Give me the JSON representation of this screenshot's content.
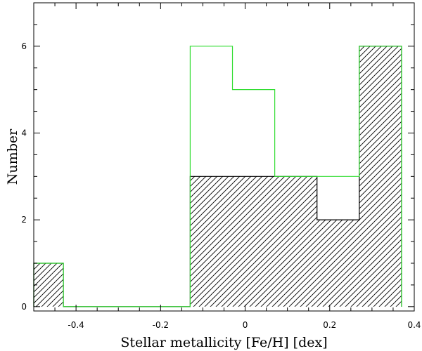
{
  "chart_data": {
    "type": "histogram",
    "xlabel": "Stellar metallicity [Fe/H] [dex]",
    "ylabel": "Number",
    "xlim": [
      -0.5,
      0.4
    ],
    "ylim": [
      -0.1,
      7.0
    ],
    "xticks": [
      -0.4,
      -0.2,
      0,
      0.2,
      0.4
    ],
    "xtick_labels": [
      "-0.4",
      "-0.2",
      "0",
      "0.2",
      "0.4"
    ],
    "yticks": [
      0,
      2,
      4,
      6
    ],
    "ytick_labels": [
      "0",
      "2",
      "4",
      "6"
    ],
    "grid": false,
    "series": [
      {
        "style": "hatched",
        "color": "#000000",
        "bins": [
          {
            "x0": -0.5,
            "x1": -0.43,
            "value": 1
          },
          {
            "x0": -0.43,
            "x1": -0.33,
            "value": 0
          },
          {
            "x0": -0.33,
            "x1": -0.23,
            "value": 0
          },
          {
            "x0": -0.23,
            "x1": -0.13,
            "value": 0
          },
          {
            "x0": -0.13,
            "x1": -0.03,
            "value": 3
          },
          {
            "x0": -0.03,
            "x1": 0.07,
            "value": 3
          },
          {
            "x0": 0.07,
            "x1": 0.17,
            "value": 3
          },
          {
            "x0": 0.17,
            "x1": 0.27,
            "value": 2
          },
          {
            "x0": 0.27,
            "x1": 0.37,
            "value": 6
          }
        ]
      },
      {
        "style": "outline",
        "color": "#33dd33",
        "bins": [
          {
            "x0": -0.5,
            "x1": -0.43,
            "value": 1
          },
          {
            "x0": -0.43,
            "x1": -0.33,
            "value": 0
          },
          {
            "x0": -0.33,
            "x1": -0.23,
            "value": 0
          },
          {
            "x0": -0.23,
            "x1": -0.13,
            "value": 0
          },
          {
            "x0": -0.13,
            "x1": -0.03,
            "value": 6
          },
          {
            "x0": -0.03,
            "x1": 0.07,
            "value": 5
          },
          {
            "x0": 0.07,
            "x1": 0.17,
            "value": 3
          },
          {
            "x0": 0.17,
            "x1": 0.27,
            "value": 3
          },
          {
            "x0": 0.27,
            "x1": 0.37,
            "value": 6
          }
        ]
      }
    ]
  }
}
